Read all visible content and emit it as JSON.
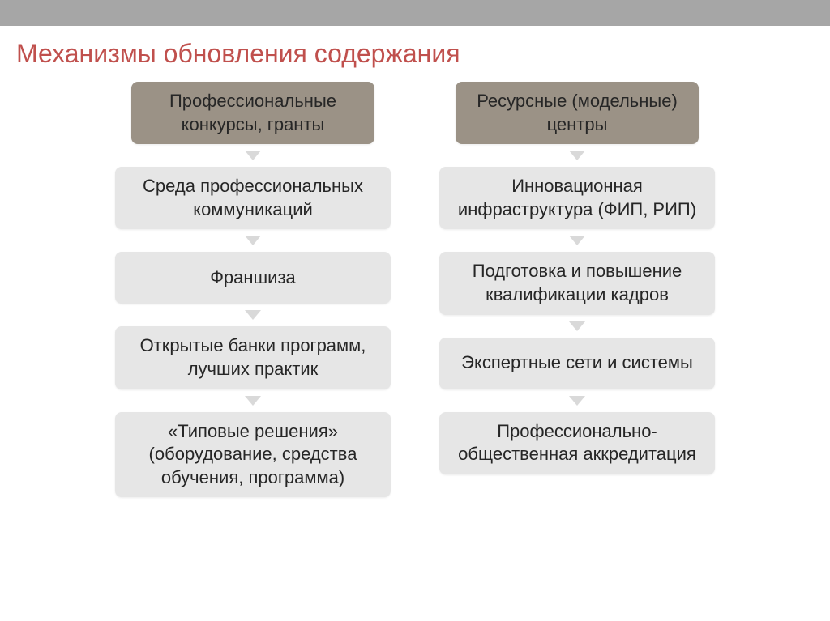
{
  "title": {
    "text": "Механизмы обновления содержания",
    "color": "#c0504d",
    "fontsize": 32
  },
  "topbar_color": "#a6a6a6",
  "arrow_color": "#d9d9d9",
  "head_box": {
    "bg": "#9b9286",
    "text_color": "#262626",
    "fontsize": 22
  },
  "item_box": {
    "bg": "#e6e6e6",
    "text_color": "#262626",
    "fontsize": 22
  },
  "columns": [
    {
      "head": "Профессиональные конкурсы, гранты",
      "items": [
        "Среда профессиональных коммуникаций",
        "Франшиза",
        "Открытые банки программ, лучших практик",
        "«Типовые решения» (оборудование, средства обучения, программа)"
      ]
    },
    {
      "head": "Ресурсные (модельные) центры",
      "items": [
        "Инновационная инфраструктура (ФИП, РИП)",
        "Подготовка и повышение квалификации кадров",
        "Экспертные сети и системы",
        "Профессионально-общественная аккредитация"
      ]
    }
  ]
}
